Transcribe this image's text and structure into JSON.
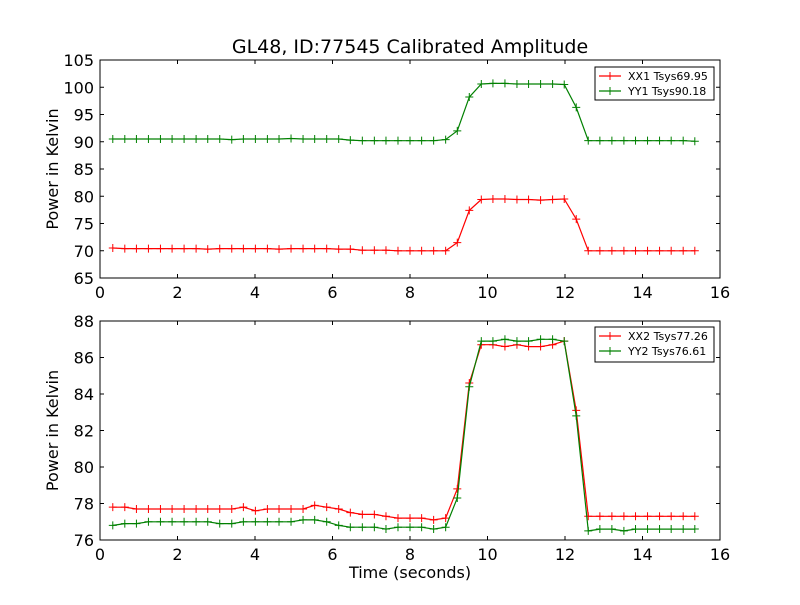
{
  "figure": {
    "title": "GL48, ID:77545 Calibrated Amplitude"
  },
  "chart_data": [
    {
      "type": "line",
      "title": "GL48, ID:77545 Calibrated Amplitude",
      "xlabel": "",
      "ylabel": "Power in Kelvin",
      "xlim": [
        0,
        16
      ],
      "ylim": [
        65,
        105
      ],
      "x_ticks": [
        "0",
        "2",
        "4",
        "6",
        "8",
        "10",
        "12",
        "14",
        "16"
      ],
      "y_ticks": [
        "65",
        "70",
        "75",
        "80",
        "85",
        "90",
        "95",
        "100",
        "105"
      ],
      "grid": false,
      "legend_position": "top-right",
      "x": [
        0.33,
        0.64,
        0.94,
        1.25,
        1.56,
        1.86,
        2.17,
        2.48,
        2.78,
        3.09,
        3.4,
        3.7,
        4.01,
        4.32,
        4.62,
        4.93,
        5.24,
        5.54,
        5.85,
        6.16,
        6.46,
        6.77,
        7.08,
        7.38,
        7.69,
        8.0,
        8.3,
        8.61,
        8.92,
        9.22,
        9.53,
        9.84,
        10.14,
        10.45,
        10.76,
        11.06,
        11.37,
        11.68,
        11.98,
        12.29,
        12.6,
        12.9,
        13.21,
        13.52,
        13.82,
        14.13,
        14.44,
        14.74,
        15.05,
        15.35
      ],
      "series": [
        {
          "name": "XX1 Tsys69.95",
          "color": "#ff0000",
          "values": [
            70.5,
            70.4,
            70.4,
            70.4,
            70.4,
            70.4,
            70.4,
            70.4,
            70.3,
            70.4,
            70.4,
            70.4,
            70.4,
            70.4,
            70.3,
            70.4,
            70.4,
            70.4,
            70.4,
            70.3,
            70.3,
            70.1,
            70.1,
            70.1,
            70.0,
            70.0,
            70.0,
            70.0,
            70.0,
            71.5,
            77.4,
            79.4,
            79.5,
            79.5,
            79.4,
            79.4,
            79.3,
            79.4,
            79.5,
            75.8,
            70.0,
            70.0,
            70.0,
            70.0,
            70.0,
            70.0,
            70.0,
            70.0,
            70.0,
            70.0
          ]
        },
        {
          "name": "YY1 Tsys90.18",
          "color": "#008000",
          "values": [
            90.5,
            90.5,
            90.5,
            90.5,
            90.5,
            90.5,
            90.5,
            90.5,
            90.5,
            90.5,
            90.4,
            90.5,
            90.5,
            90.5,
            90.5,
            90.6,
            90.5,
            90.5,
            90.5,
            90.5,
            90.3,
            90.2,
            90.2,
            90.2,
            90.2,
            90.2,
            90.2,
            90.2,
            90.4,
            92.0,
            98.2,
            100.6,
            100.7,
            100.7,
            100.6,
            100.6,
            100.6,
            100.6,
            100.5,
            96.3,
            90.2,
            90.2,
            90.2,
            90.2,
            90.2,
            90.2,
            90.2,
            90.2,
            90.2,
            90.1
          ]
        }
      ]
    },
    {
      "type": "line",
      "title": "",
      "xlabel": "Time (seconds)",
      "ylabel": "Power in Kelvin",
      "xlim": [
        0,
        16
      ],
      "ylim": [
        76,
        88
      ],
      "x_ticks": [
        "0",
        "2",
        "4",
        "6",
        "8",
        "10",
        "12",
        "14",
        "16"
      ],
      "y_ticks": [
        "76",
        "78",
        "80",
        "82",
        "84",
        "86",
        "88"
      ],
      "grid": false,
      "legend_position": "top-right",
      "x": [
        0.33,
        0.64,
        0.94,
        1.25,
        1.56,
        1.86,
        2.17,
        2.48,
        2.78,
        3.09,
        3.4,
        3.7,
        4.01,
        4.32,
        4.62,
        4.93,
        5.24,
        5.54,
        5.85,
        6.16,
        6.46,
        6.77,
        7.08,
        7.38,
        7.69,
        8.0,
        8.3,
        8.61,
        8.92,
        9.22,
        9.53,
        9.84,
        10.14,
        10.45,
        10.76,
        11.06,
        11.37,
        11.68,
        11.98,
        12.29,
        12.6,
        12.9,
        13.21,
        13.52,
        13.82,
        14.13,
        14.44,
        14.74,
        15.05,
        15.35
      ],
      "series": [
        {
          "name": "XX2 Tsys77.26",
          "color": "#ff0000",
          "values": [
            77.8,
            77.8,
            77.7,
            77.7,
            77.7,
            77.7,
            77.7,
            77.7,
            77.7,
            77.7,
            77.7,
            77.8,
            77.6,
            77.7,
            77.7,
            77.7,
            77.7,
            77.9,
            77.8,
            77.7,
            77.5,
            77.4,
            77.4,
            77.3,
            77.2,
            77.2,
            77.2,
            77.1,
            77.2,
            78.8,
            84.6,
            86.7,
            86.7,
            86.6,
            86.7,
            86.6,
            86.6,
            86.7,
            86.9,
            83.1,
            77.3,
            77.3,
            77.3,
            77.3,
            77.3,
            77.3,
            77.3,
            77.3,
            77.3,
            77.3
          ]
        },
        {
          "name": "YY2 Tsys76.61",
          "color": "#008000",
          "values": [
            76.8,
            76.9,
            76.9,
            77.0,
            77.0,
            77.0,
            77.0,
            77.0,
            77.0,
            76.9,
            76.9,
            77.0,
            77.0,
            77.0,
            77.0,
            77.0,
            77.1,
            77.1,
            77.0,
            76.8,
            76.7,
            76.7,
            76.7,
            76.6,
            76.7,
            76.7,
            76.7,
            76.6,
            76.7,
            78.3,
            84.4,
            86.9,
            86.9,
            87.0,
            86.9,
            86.9,
            87.0,
            87.0,
            86.9,
            82.8,
            76.5,
            76.6,
            76.6,
            76.5,
            76.6,
            76.6,
            76.6,
            76.6,
            76.6,
            76.6
          ]
        }
      ]
    }
  ]
}
